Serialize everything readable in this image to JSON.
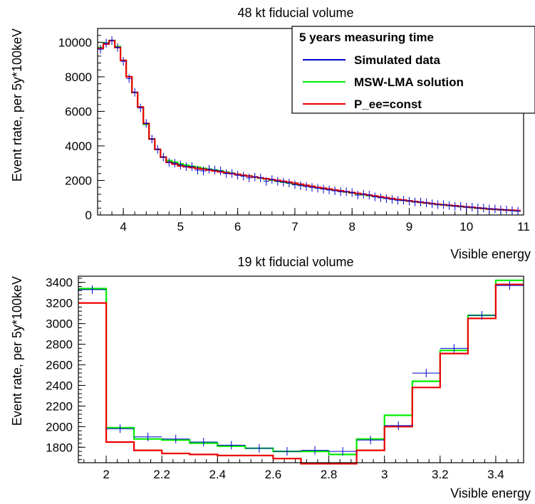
{
  "colors": {
    "simulated": "#0000cc",
    "msw": "#00ee00",
    "pee": "#ee0000",
    "axis": "#000000"
  },
  "legend": {
    "title": "5 years measuring time",
    "entries": [
      "Simulated data",
      "MSW-LMA solution",
      "P_ee=const"
    ]
  },
  "chart_data": [
    {
      "type": "line",
      "title": "48 kt fiducial volume",
      "xlabel": "Visible energy",
      "ylabel": "Event rtate, per 5y*100keV",
      "xlim": [
        3.55,
        11.0
      ],
      "ylim": [
        0,
        10800
      ],
      "xticks": [
        "4",
        "5",
        "6",
        "7",
        "8",
        "9",
        "10",
        "11"
      ],
      "yticks": [
        "0",
        "2000",
        "4000",
        "6000",
        "8000",
        "10000"
      ],
      "bin_width": 0.1,
      "series": [
        {
          "name": "Simulated data",
          "type": "data_points",
          "x": [
            3.6,
            3.7,
            3.8,
            3.9,
            4.0,
            4.1,
            4.2,
            4.3,
            4.4,
            4.5,
            4.6,
            4.7,
            4.8,
            4.9,
            5.0,
            5.1,
            5.2,
            5.3,
            5.4,
            5.5,
            5.6,
            5.7,
            5.8,
            5.9,
            6.0,
            6.1,
            6.2,
            6.3,
            6.4,
            6.5,
            6.6,
            6.7,
            6.8,
            6.9,
            7.0,
            7.1,
            7.2,
            7.3,
            7.4,
            7.5,
            7.6,
            7.7,
            7.8,
            7.9,
            8.0,
            8.1,
            8.2,
            8.3,
            8.4,
            8.5,
            8.6,
            8.7,
            8.8,
            8.9,
            9.0,
            9.1,
            9.2,
            9.3,
            9.4,
            9.5,
            9.6,
            9.7,
            9.8,
            9.9,
            10.0,
            10.1,
            10.2,
            10.3,
            10.4,
            10.5,
            10.6,
            10.7,
            10.8,
            10.9
          ],
          "y": [
            9600,
            9950,
            10100,
            9700,
            8900,
            7900,
            7100,
            6200,
            5300,
            4400,
            3800,
            3350,
            3050,
            3000,
            2900,
            2800,
            2800,
            2600,
            2550,
            2650,
            2600,
            2550,
            2400,
            2400,
            2300,
            2250,
            2150,
            2200,
            2150,
            1950,
            2050,
            1950,
            1900,
            1850,
            1750,
            1700,
            1650,
            1600,
            1550,
            1500,
            1450,
            1400,
            1350,
            1350,
            1300,
            1150,
            1200,
            1150,
            1050,
            1000,
            950,
            900,
            850,
            850,
            800,
            750,
            750,
            700,
            650,
            600,
            600,
            550,
            500,
            500,
            450,
            450,
            400,
            400,
            350,
            350,
            300,
            300,
            250,
            220
          ]
        },
        {
          "name": "MSW-LMA solution",
          "type": "step",
          "x": [
            3.6,
            3.7,
            3.8,
            3.9,
            4.0,
            4.1,
            4.2,
            4.3,
            4.4,
            4.5,
            4.6,
            4.7,
            4.8,
            4.9,
            5.0,
            5.1,
            5.2,
            5.3,
            5.4,
            5.5,
            5.6,
            5.7,
            5.8,
            5.9,
            6.0,
            6.1,
            6.2,
            6.3,
            6.4,
            6.5,
            6.6,
            6.7,
            6.8,
            6.9,
            7.0,
            7.1,
            7.2,
            7.3,
            7.4,
            7.5,
            7.6,
            7.7,
            7.8,
            7.9,
            8.0,
            8.1,
            8.2,
            8.3,
            8.4,
            8.5,
            8.6,
            8.7,
            8.8,
            8.9,
            9.0,
            9.1,
            9.2,
            9.3,
            9.4,
            9.5,
            9.6,
            9.7,
            9.8,
            9.9,
            10.0,
            10.1,
            10.2,
            10.3,
            10.4,
            10.5,
            10.6,
            10.7,
            10.8,
            10.9
          ],
          "y": [
            9700,
            9950,
            10100,
            9750,
            8950,
            8000,
            7100,
            6250,
            5250,
            4400,
            3800,
            3350,
            3150,
            3050,
            2950,
            2880,
            2820,
            2760,
            2700,
            2650,
            2600,
            2550,
            2480,
            2420,
            2350,
            2300,
            2250,
            2200,
            2140,
            2080,
            2020,
            1960,
            1900,
            1850,
            1800,
            1740,
            1690,
            1640,
            1580,
            1530,
            1480,
            1430,
            1380,
            1330,
            1280,
            1230,
            1180,
            1130,
            1080,
            1030,
            980,
            930,
            890,
            850,
            810,
            770,
            730,
            690,
            650,
            610,
            580,
            550,
            520,
            490,
            460,
            430,
            400,
            370,
            340,
            320,
            300,
            280,
            260,
            240
          ]
        },
        {
          "name": "P_ee=const",
          "type": "step",
          "x": [
            3.6,
            3.7,
            3.8,
            3.9,
            4.0,
            4.1,
            4.2,
            4.3,
            4.4,
            4.5,
            4.6,
            4.7,
            4.8,
            4.9,
            5.0,
            5.1,
            5.2,
            5.3,
            5.4,
            5.5,
            5.6,
            5.7,
            5.8,
            5.9,
            6.0,
            6.1,
            6.2,
            6.3,
            6.4,
            6.5,
            6.6,
            6.7,
            6.8,
            6.9,
            7.0,
            7.1,
            7.2,
            7.3,
            7.4,
            7.5,
            7.6,
            7.7,
            7.8,
            7.9,
            8.0,
            8.1,
            8.2,
            8.3,
            8.4,
            8.5,
            8.6,
            8.7,
            8.8,
            8.9,
            9.0,
            9.1,
            9.2,
            9.3,
            9.4,
            9.5,
            9.6,
            9.7,
            9.8,
            9.9,
            10.0,
            10.1,
            10.2,
            10.3,
            10.4,
            10.5,
            10.6,
            10.7,
            10.8,
            10.9
          ],
          "y": [
            9650,
            9900,
            10100,
            9700,
            8950,
            8000,
            7100,
            6250,
            5300,
            4400,
            3800,
            3350,
            3050,
            2950,
            2850,
            2800,
            2750,
            2700,
            2650,
            2600,
            2550,
            2500,
            2450,
            2400,
            2350,
            2300,
            2250,
            2200,
            2150,
            2100,
            2050,
            2000,
            1950,
            1900,
            1840,
            1780,
            1720,
            1660,
            1600,
            1550,
            1500,
            1450,
            1400,
            1350,
            1300,
            1250,
            1200,
            1150,
            1100,
            1050,
            1000,
            950,
            900,
            860,
            820,
            780,
            740,
            700,
            660,
            620,
            590,
            560,
            530,
            500,
            470,
            440,
            410,
            380,
            350,
            330,
            310,
            290,
            270,
            250
          ]
        }
      ]
    },
    {
      "type": "line",
      "title": "19 kt fiducial volume",
      "xlabel": "Visible energy",
      "ylabel": "Event rate, per 5y*100keV",
      "xlim": [
        1.9,
        3.5
      ],
      "ylim": [
        1650,
        3460
      ],
      "xticks": [
        "2",
        "2.2",
        "2.4",
        "2.6",
        "2.8",
        "3",
        "3.2",
        "3.4"
      ],
      "yticks": [
        "1800",
        "2000",
        "2200",
        "2400",
        "2600",
        "2800",
        "3000",
        "3200",
        "3400"
      ],
      "bin_width": 0.1,
      "series": [
        {
          "name": "Simulated data",
          "type": "data_points",
          "x": [
            1.95,
            2.05,
            2.15,
            2.25,
            2.35,
            2.45,
            2.55,
            2.65,
            2.75,
            2.85,
            2.95,
            3.05,
            3.15,
            3.25,
            3.35,
            3.45
          ],
          "y": [
            3330,
            1980,
            1900,
            1880,
            1850,
            1820,
            1790,
            1760,
            1770,
            1760,
            1870,
            2010,
            2520,
            2760,
            3080,
            3370
          ]
        },
        {
          "name": "MSW-LMA solution",
          "type": "step",
          "x": [
            1.95,
            2.05,
            2.15,
            2.25,
            2.35,
            2.45,
            2.55,
            2.65,
            2.75,
            2.85,
            2.95,
            3.05,
            3.15,
            3.25,
            3.35,
            3.45
          ],
          "y": [
            3340,
            1990,
            1880,
            1870,
            1840,
            1810,
            1790,
            1760,
            1760,
            1730,
            1880,
            2110,
            2440,
            2740,
            3080,
            3420
          ]
        },
        {
          "name": "P_ee=const",
          "type": "step",
          "x": [
            1.95,
            2.05,
            2.15,
            2.25,
            2.35,
            2.45,
            2.55,
            2.65,
            2.75,
            2.85,
            2.95,
            3.05,
            3.15,
            3.25,
            3.35,
            3.45
          ],
          "y": [
            3200,
            1850,
            1770,
            1740,
            1730,
            1720,
            1720,
            1690,
            1640,
            1640,
            1770,
            2000,
            2380,
            2710,
            3050,
            3380
          ]
        }
      ]
    }
  ]
}
